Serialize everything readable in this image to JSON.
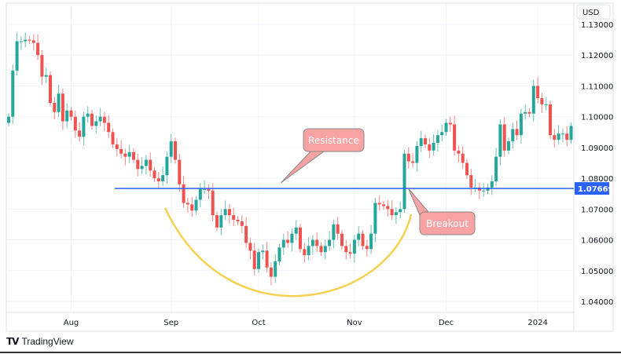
{
  "chart_data": {
    "type": "candlestick",
    "currency": "USD",
    "ylim": [
      1.037,
      1.133
    ],
    "y_ticks": [
      "1.13000",
      "1.12000",
      "1.11000",
      "1.10000",
      "1.09000",
      "1.08000",
      "1.07000",
      "1.06000",
      "1.05000",
      "1.04000"
    ],
    "x_ticks": [
      {
        "label": "Aug",
        "index": 15
      },
      {
        "label": "Sep",
        "index": 39
      },
      {
        "label": "Oct",
        "index": 60
      },
      {
        "label": "Nov",
        "index": 83
      },
      {
        "label": "Dec",
        "index": 105
      },
      {
        "label": "2024",
        "index": 127
      }
    ],
    "closes": [
      1.1,
      1.115,
      1.1245,
      1.1245,
      1.125,
      1.1248,
      1.124,
      1.12,
      1.113,
      1.1135,
      1.1045,
      1.1015,
      1.1075,
      1.0985,
      1.102,
      1.1,
      1.0955,
      1.0935,
      1.1,
      1.101,
      1.097,
      1.0985,
      1.1,
      1.098,
      1.095,
      1.091,
      1.0895,
      1.088,
      1.087,
      1.0885,
      1.086,
      1.083,
      1.084,
      1.086,
      1.0825,
      1.08,
      1.079,
      1.081,
      1.087,
      1.092,
      1.086,
      1.078,
      1.072,
      1.0715,
      1.0695,
      1.073,
      1.0765,
      1.0765,
      1.076,
      1.068,
      1.064,
      1.068,
      1.07,
      1.068,
      1.0665,
      1.066,
      1.0645,
      1.059,
      1.0565,
      1.0505,
      1.056,
      1.0565,
      1.051,
      1.048,
      1.053,
      1.0575,
      1.06,
      1.059,
      1.062,
      1.064,
      1.057,
      1.055,
      1.058,
      1.06,
      1.058,
      1.056,
      1.058,
      1.06,
      1.065,
      1.062,
      1.058,
      1.056,
      1.0555,
      1.06,
      1.062,
      1.058,
      1.057,
      1.062,
      1.072,
      1.0715,
      1.071,
      1.07,
      1.068,
      1.069,
      1.07,
      1.088,
      1.0855,
      1.085,
      1.0905,
      1.093,
      1.091,
      1.089,
      1.0915,
      1.094,
      1.095,
      1.098,
      1.0975,
      1.089,
      1.088,
      1.085,
      1.081,
      1.077,
      1.077,
      1.076,
      1.076,
      1.077,
      1.079,
      1.087,
      1.0975,
      1.089,
      1.092,
      1.096,
      1.094,
      1.101,
      1.1015,
      1.101,
      1.11,
      1.106,
      1.104,
      1.104,
      1.094,
      1.0925,
      1.0945,
      1.0945,
      1.0925,
      1.097
    ],
    "resistance": {
      "value": 1.07669,
      "label": "1.07669",
      "color": "#2962ff"
    },
    "annotations": [
      {
        "text": "Resistance",
        "points_to_index": 71,
        "points_to_value": 1.0785
      },
      {
        "text": "Breakout",
        "points_to_index": 95,
        "points_to_value": 1.0767
      }
    ],
    "colors": {
      "up": "#26a69a",
      "down": "#ef5350",
      "callout": "#f7a3a3",
      "arc": "#f6d250"
    },
    "grid": true
  },
  "branding": {
    "logo_text": "TradingView",
    "logo_mark": "TV"
  }
}
